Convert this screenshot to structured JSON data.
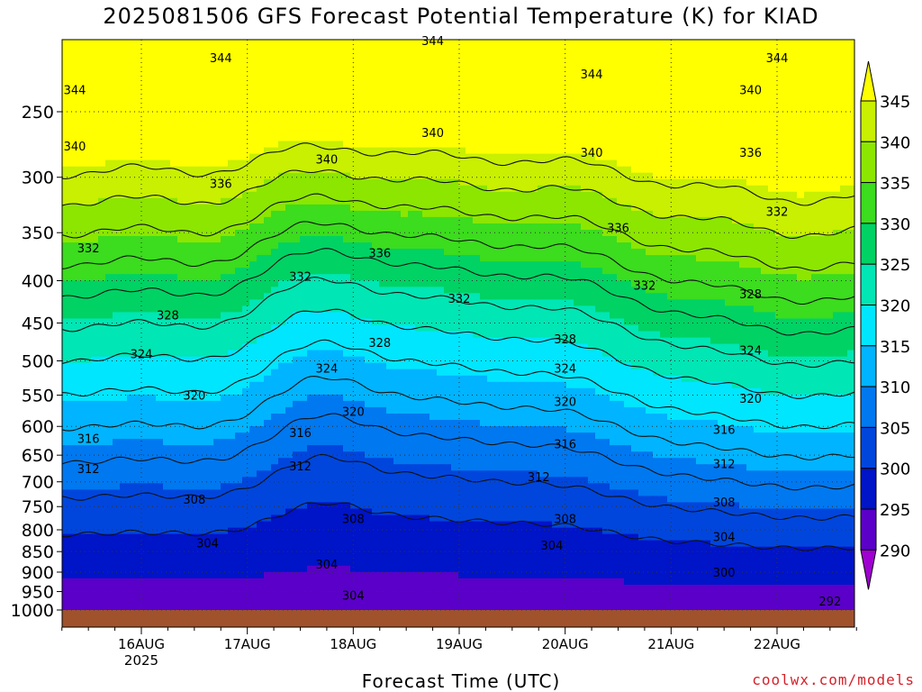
{
  "chart_data": {
    "type": "heatmap",
    "title": "2025081506 GFS Forecast Potential Temperature (K) for KIAD",
    "xlabel": "Forecast Time (UTC)",
    "ylabel": "",
    "y_scale": "pressure (inverted)",
    "ylim": [
      1000,
      200
    ],
    "y_ticks": [
      250,
      300,
      350,
      400,
      450,
      500,
      550,
      600,
      650,
      700,
      750,
      800,
      850,
      900,
      950,
      1000
    ],
    "xlim": [
      "2025-08-15 06Z",
      "2025-08-22 18Z"
    ],
    "x_ticks": [
      {
        "label": "16AUG",
        "sublabel": "2025",
        "date": "2025-08-16 00Z"
      },
      {
        "label": "17AUG",
        "sublabel": "",
        "date": "2025-08-17 00Z"
      },
      {
        "label": "18AUG",
        "sublabel": "",
        "date": "2025-08-18 00Z"
      },
      {
        "label": "19AUG",
        "sublabel": "",
        "date": "2025-08-19 00Z"
      },
      {
        "label": "20AUG",
        "sublabel": "",
        "date": "2025-08-20 00Z"
      },
      {
        "label": "21AUG",
        "sublabel": "",
        "date": "2025-08-21 00Z"
      },
      {
        "label": "22AUG",
        "sublabel": "",
        "date": "2025-08-22 00Z"
      }
    ],
    "grid": true,
    "colorbar": {
      "labels": [
        345,
        340,
        335,
        330,
        325,
        320,
        315,
        310,
        305,
        300,
        295,
        290
      ],
      "colors": [
        "#ffff00",
        "#c8f000",
        "#8ce600",
        "#3cdc1e",
        "#00d264",
        "#00e6b4",
        "#00e6ff",
        "#00b4ff",
        "#0078f0",
        "#0046dc",
        "#0014c8",
        "#5a00c8",
        "#a000d2"
      ]
    },
    "contour_interval": 4,
    "contours": [
      {
        "level": 300,
        "label_points": [
          {
            "date": "2025-08-21 12Z",
            "p": 900
          }
        ]
      },
      {
        "level": 304,
        "label_points": [
          {
            "date": "2025-08-16 15Z",
            "p": 830
          },
          {
            "date": "2025-08-17 18Z",
            "p": 880
          },
          {
            "date": "2025-08-18 00Z",
            "p": 960
          },
          {
            "date": "2025-08-19 21Z",
            "p": 835
          },
          {
            "date": "2025-08-21 12Z",
            "p": 815
          }
        ]
      },
      {
        "level": 308,
        "label_points": [
          {
            "date": "2025-08-16 12Z",
            "p": 735
          },
          {
            "date": "2025-08-18 00Z",
            "p": 775
          },
          {
            "date": "2025-08-20 00Z",
            "p": 775
          },
          {
            "date": "2025-08-21 12Z",
            "p": 740
          }
        ]
      },
      {
        "level": 312,
        "label_points": [
          {
            "date": "2025-08-15 12Z",
            "p": 675
          },
          {
            "date": "2025-08-17 12Z",
            "p": 670
          },
          {
            "date": "2025-08-19 18Z",
            "p": 690
          },
          {
            "date": "2025-08-21 12Z",
            "p": 665
          }
        ]
      },
      {
        "level": 316,
        "label_points": [
          {
            "date": "2025-08-15 12Z",
            "p": 620
          },
          {
            "date": "2025-08-17 12Z",
            "p": 610
          },
          {
            "date": "2025-08-20 00Z",
            "p": 630
          },
          {
            "date": "2025-08-21 12Z",
            "p": 605
          }
        ]
      },
      {
        "level": 320,
        "label_points": [
          {
            "date": "2025-08-16 12Z",
            "p": 550
          },
          {
            "date": "2025-08-18 00Z",
            "p": 575
          },
          {
            "date": "2025-08-20 00Z",
            "p": 560
          },
          {
            "date": "2025-08-21 18Z",
            "p": 555
          }
        ]
      },
      {
        "level": 324,
        "label_points": [
          {
            "date": "2025-08-16 00Z",
            "p": 490
          },
          {
            "date": "2025-08-17 18Z",
            "p": 510
          },
          {
            "date": "2025-08-20 00Z",
            "p": 510
          },
          {
            "date": "2025-08-21 18Z",
            "p": 485
          }
        ]
      },
      {
        "level": 328,
        "label_points": [
          {
            "date": "2025-08-16 06Z",
            "p": 440
          },
          {
            "date": "2025-08-18 06Z",
            "p": 475
          },
          {
            "date": "2025-08-20 00Z",
            "p": 470
          },
          {
            "date": "2025-08-21 18Z",
            "p": 415
          }
        ]
      },
      {
        "level": 332,
        "label_points": [
          {
            "date": "2025-08-15 12Z",
            "p": 365
          },
          {
            "date": "2025-08-17 12Z",
            "p": 395
          },
          {
            "date": "2025-08-19 00Z",
            "p": 420
          },
          {
            "date": "2025-08-20 18Z",
            "p": 405
          },
          {
            "date": "2025-08-22 00Z",
            "p": 330
          }
        ]
      },
      {
        "level": 336,
        "label_points": [
          {
            "date": "2025-08-16 18Z",
            "p": 305
          },
          {
            "date": "2025-08-18 06Z",
            "p": 370
          },
          {
            "date": "2025-08-20 12Z",
            "p": 345
          },
          {
            "date": "2025-08-21 18Z",
            "p": 280
          }
        ]
      },
      {
        "level": 340,
        "label_points": [
          {
            "date": "2025-08-15 06Z",
            "p": 275
          },
          {
            "date": "2025-08-17 18Z",
            "p": 285
          },
          {
            "date": "2025-08-18 18Z",
            "p": 265
          },
          {
            "date": "2025-08-20 06Z",
            "p": 280
          },
          {
            "date": "2025-08-21 18Z",
            "p": 235
          }
        ]
      },
      {
        "level": 344,
        "label_points": [
          {
            "date": "2025-08-15 06Z",
            "p": 235
          },
          {
            "date": "2025-08-16 18Z",
            "p": 215
          },
          {
            "date": "2025-08-18 18Z",
            "p": 205
          },
          {
            "date": "2025-08-20 06Z",
            "p": 225
          },
          {
            "date": "2025-08-22 00Z",
            "p": 215
          }
        ]
      }
    ],
    "surface_label": "292",
    "surface_label_point": {
      "date": "2025-08-22 12Z",
      "p": 975
    }
  },
  "credit": "coolwx.com/models"
}
